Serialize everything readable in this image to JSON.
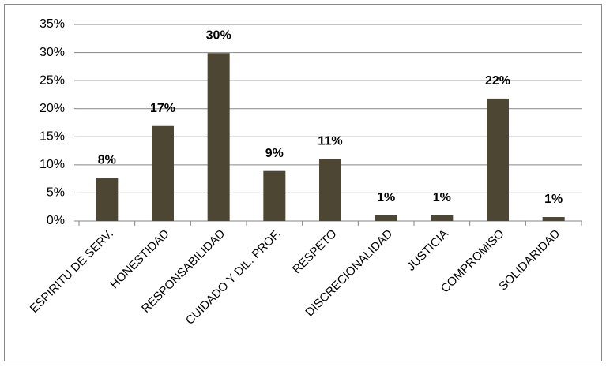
{
  "chart_data": {
    "type": "bar",
    "categories": [
      "ESPIRITU DE SERV.",
      "HONESTIDAD",
      "RESPONSABILIDAD",
      "CUIDADO Y DIL. PROF.",
      "RESPETO",
      "DISCRECIONALIDAD",
      "JUSTICIA",
      "COMPROMISO",
      "SOLIDARIDAD"
    ],
    "values": [
      7.7,
      16.9,
      29.9,
      8.9,
      11.1,
      1,
      1,
      21.8,
      0.7
    ],
    "value_labels": [
      "8%",
      "17%",
      "30%",
      "9%",
      "11%",
      "1%",
      "1%",
      "22%",
      "1%"
    ],
    "color": "#4d4632",
    "ylim": [
      0,
      35
    ],
    "yticks": [
      {
        "value": 0,
        "label": "0%"
      },
      {
        "value": 5,
        "label": "5%"
      },
      {
        "value": 10,
        "label": "10%"
      },
      {
        "value": 15,
        "label": "15%"
      },
      {
        "value": 20,
        "label": "20%"
      },
      {
        "value": 25,
        "label": "25%"
      },
      {
        "value": 30,
        "label": "30%"
      },
      {
        "value": 35,
        "label": "35%"
      }
    ],
    "grid": true
  }
}
